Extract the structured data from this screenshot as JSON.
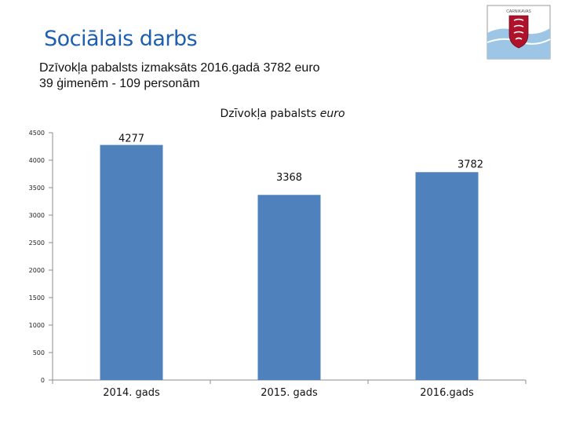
{
  "header": {
    "title": "Sociālais darbs",
    "line1": "Dzīvokļa pabalsts izmaksāts 2016.gadā 3782 euro",
    "line2": "39 ģimenēm - 109 personām"
  },
  "logo": {
    "caption": "CARNIKAVAS",
    "icon": "municipal-coat-of-arms"
  },
  "colors": {
    "bar": "#4f81bd",
    "title": "#1f5fb0"
  },
  "chart_data": {
    "type": "bar",
    "title": "Dzīvokļa pabalsts",
    "title_unit": "euro",
    "categories": [
      "2014. gads",
      "2015. gads",
      "2016.gads"
    ],
    "values": [
      4277,
      3368,
      3782
    ],
    "data_labels": [
      "4277",
      "3368",
      "3782"
    ],
    "ylim": [
      0,
      4500
    ],
    "yticks": [
      0,
      500,
      1000,
      1500,
      2000,
      2500,
      3000,
      3500,
      4000,
      4500
    ],
    "grid": false,
    "legend": "none"
  }
}
